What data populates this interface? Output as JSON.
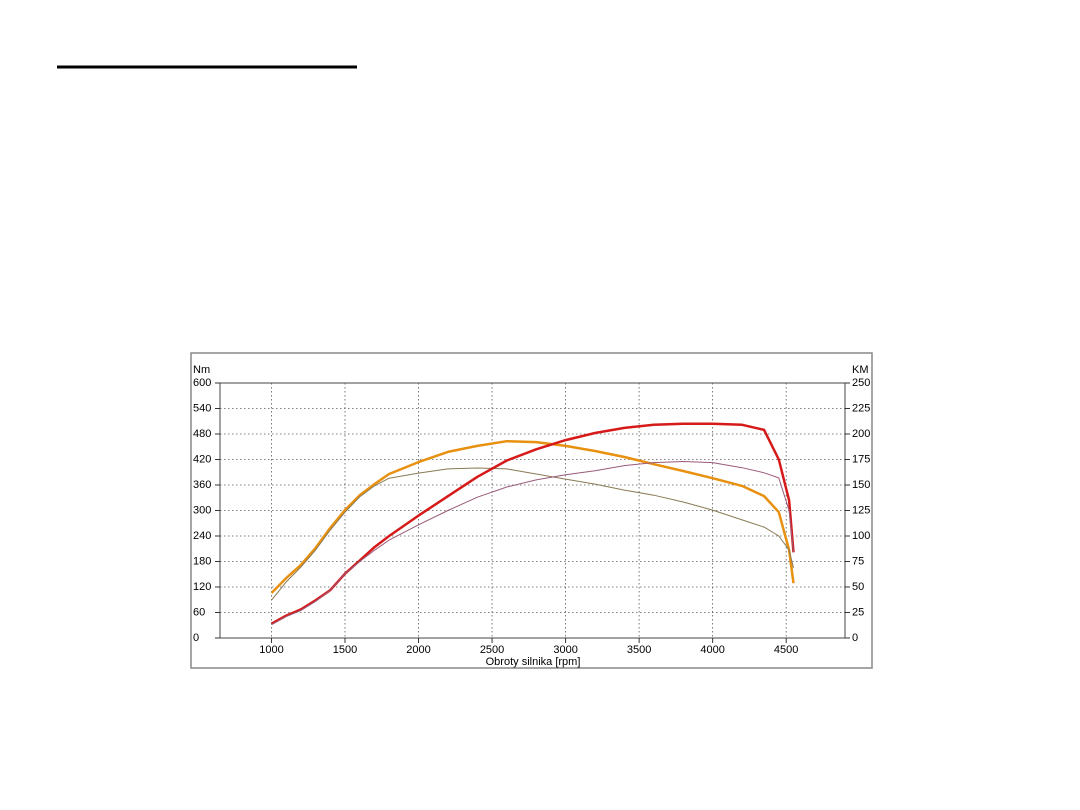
{
  "chart_data": {
    "type": "line",
    "x_label": "Obroty silnika [rpm]",
    "y_label": "Nm",
    "y2_label": "KM",
    "x": [
      1000,
      1100,
      1200,
      1300,
      1400,
      1500,
      1600,
      1700,
      1800,
      2000,
      2200,
      2400,
      2600,
      2800,
      3000,
      3200,
      3400,
      3600,
      3800,
      4000,
      4200,
      4350,
      4450,
      4520,
      4550
    ],
    "series": [
      {
        "color": "#e8900f",
        "width": 2.5,
        "values": [
          106,
          141,
          172,
          212,
          259,
          301,
          336,
          362,
          386,
          414,
          438,
          452,
          463,
          461,
          452,
          440,
          426,
          409,
          393,
          376,
          358,
          334,
          296,
          207,
          129
        ]
      },
      {
        "color": "#8a7a55",
        "width": 1,
        "values": [
          89,
          132,
          167,
          207,
          254,
          296,
          332,
          358,
          376,
          388,
          398,
          400,
          398,
          386,
          374,
          362,
          348,
          336,
          320,
          301,
          278,
          261,
          240,
          207,
          165
        ]
      },
      {
        "color": "#d61a1a",
        "width": 2.5,
        "axis": "y2",
        "values": [
          14,
          22,
          28,
          37,
          47,
          63,
          76,
          89,
          100,
          120,
          139,
          158,
          174,
          185,
          194,
          201,
          206,
          209,
          210,
          210,
          209,
          204,
          175,
          135,
          84
        ]
      },
      {
        "color": "#9a5a78",
        "width": 1,
        "axis": "y2",
        "values": [
          13,
          21,
          27,
          36,
          47,
          63,
          75,
          86,
          96,
          111,
          125,
          138,
          148,
          155,
          160,
          164,
          169,
          172,
          173,
          172,
          167,
          162,
          157,
          125,
          84
        ]
      }
    ],
    "xlim": [
      650,
      4900
    ],
    "xticks": [
      1000,
      1500,
      2000,
      2500,
      3000,
      3500,
      4000,
      4500
    ],
    "ylim": [
      0,
      600
    ],
    "yticks": [
      0,
      60,
      120,
      180,
      240,
      300,
      360,
      420,
      480,
      540,
      600
    ],
    "y2lim": [
      0,
      250
    ],
    "y2ticks": [
      0,
      25,
      50,
      75,
      100,
      125,
      150,
      175,
      200,
      225,
      250
    ],
    "grid": true
  }
}
